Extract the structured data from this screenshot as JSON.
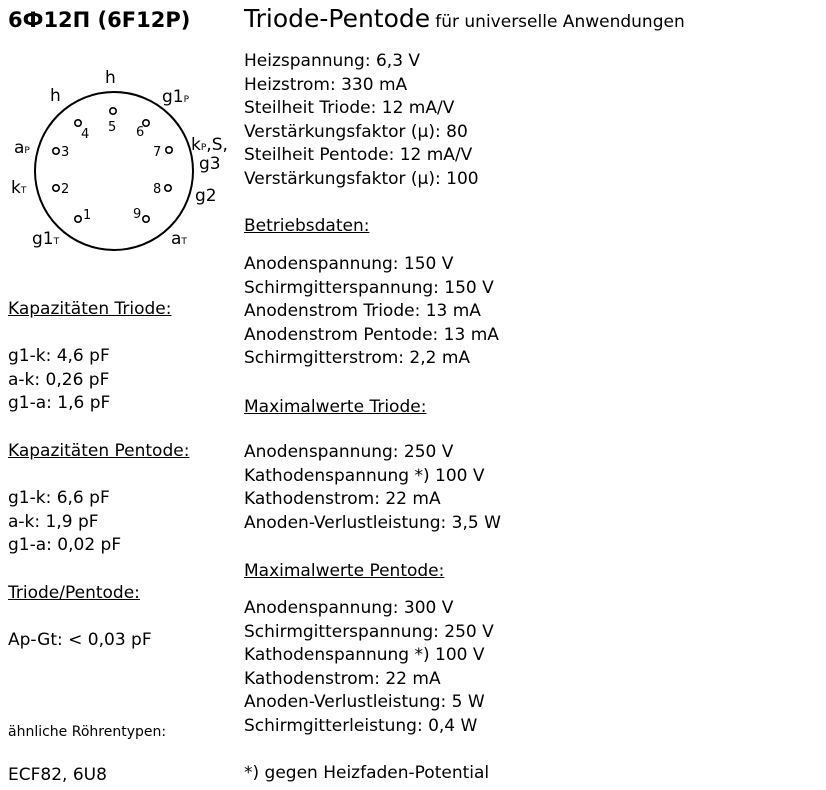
{
  "tube_name": "6Ф12П (6F12P)",
  "type": "Triode-Pentode",
  "type_sub": "für universelle Anwendungen",
  "specs": [
    "Heizspannung: 6,3 V",
    "Heizstrom: 330 mA",
    "Steilheit Triode: 12 mA/V",
    "Verstärkungsfaktor (µ): 80",
    "Steilheit Pentode: 12 mA/V",
    "Verstärkungsfaktor (µ): 100"
  ],
  "operating": {
    "heading": "Betriebsdaten:",
    "items": [
      "Anodenspannung: 150 V",
      "Schirmgitterspannung: 150 V",
      "Anodenstrom Triode: 13 mA",
      "Anodenstrom Pentode: 13 mA",
      "Schirmgitterstrom: 2,2 mA"
    ]
  },
  "max_triode": {
    "heading": "Maximalwerte Triode:",
    "items": [
      "Anodenspannung: 250 V",
      "Kathodenspannung *) 100 V",
      "Kathodenstrom: 22 mA",
      "Anoden-Verlustleistung: 3,5 W"
    ]
  },
  "max_pentode": {
    "heading": "Maximalwerte Pentode:",
    "items": [
      "Anodenspannung: 300 V",
      "Schirmgitterspannung: 250 V",
      "Kathodenspannung *) 100 V",
      "Kathodenstrom: 22 mA",
      "Anoden-Verlustleistung: 5 W",
      "Schirmgitterleistung: 0,4 W"
    ]
  },
  "footnote": "*) gegen Heizfaden-Potential",
  "cap_triode": {
    "heading": "Kapazitäten Triode:",
    "items": [
      "g1-k: 4,6 pF",
      "a-k: 0,26 pF",
      "g1-a: 1,6 pF"
    ]
  },
  "cap_pentode": {
    "heading": "Kapazitäten Pentode:",
    "items": [
      "g1-k: 6,6 pF",
      "a-k: 1,9 pF",
      "g1-a: 0,02 pF"
    ]
  },
  "cap_tp": {
    "heading": "Triode/Pentode:",
    "items": [
      "Ap-Gt: < 0,03 pF"
    ]
  },
  "similar": {
    "heading": "ähnliche Röhrentypen:",
    "value": "ECF82, 6U8"
  },
  "pinout": {
    "pins": [
      "1",
      "2",
      "3",
      "4",
      "5",
      "6",
      "7",
      "8",
      "9"
    ],
    "labels": {
      "h_left": "h",
      "h_top": "h",
      "g1p": "g1",
      "g1p_sub": "P",
      "kp": "k",
      "kp_sub": "P",
      "kp_rest": ",S,",
      "g3": "g3",
      "g2": "g2",
      "at": "a",
      "at_sub": "T",
      "g1t": "g1",
      "g1t_sub": "T",
      "kt": "k",
      "kt_sub": "T",
      "ap": "a",
      "ap_sub": "P"
    }
  }
}
